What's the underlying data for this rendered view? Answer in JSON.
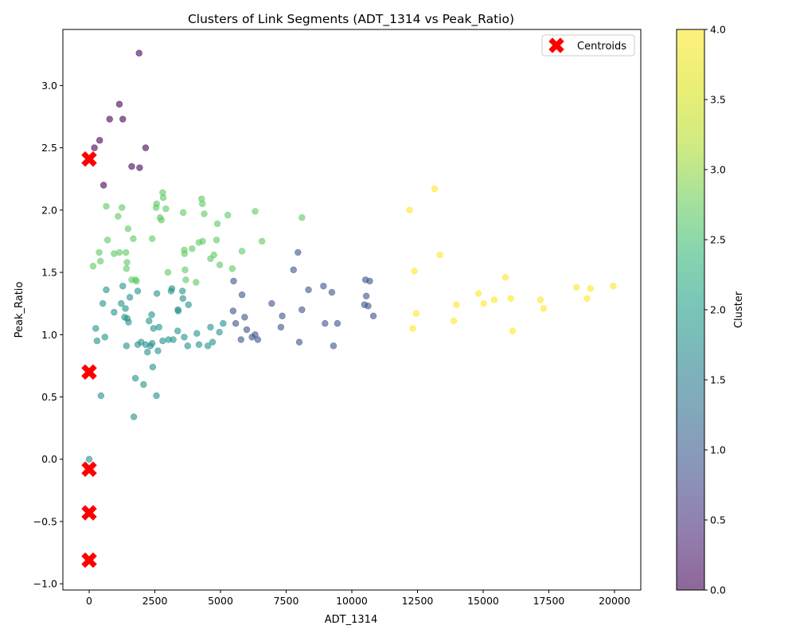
{
  "chart_data": {
    "type": "scatter",
    "title": "Clusters of Link Segments (ADT_1314 vs Peak_Ratio)",
    "xlabel": "ADT_1314",
    "ylabel": "Peak_Ratio",
    "xlim": [
      -1000,
      21000
    ],
    "ylim": [
      -1.05,
      3.45
    ],
    "x_ticks": [
      0,
      2500,
      5000,
      7500,
      10000,
      12500,
      15000,
      17500,
      20000
    ],
    "x_tick_labels": [
      "0",
      "2500",
      "5000",
      "7500",
      "10000",
      "12500",
      "15000",
      "17500",
      "20000"
    ],
    "y_ticks": [
      -1.0,
      -0.5,
      0.0,
      0.5,
      1.0,
      1.5,
      2.0,
      2.5,
      3.0
    ],
    "y_tick_labels": [
      "−1.0",
      "−0.5",
      "0.0",
      "0.5",
      "1.0",
      "1.5",
      "2.0",
      "2.5",
      "3.0"
    ],
    "grid": false,
    "colormap": "viridis",
    "marker_alpha": 0.6,
    "colorbar": {
      "label": "Cluster",
      "range": [
        0,
        4
      ],
      "ticks": [
        0.0,
        0.5,
        1.0,
        1.5,
        2.0,
        2.5,
        3.0,
        3.5,
        4.0
      ],
      "tick_labels": [
        "0.0",
        "0.5",
        "1.0",
        "1.5",
        "2.0",
        "2.5",
        "3.0",
        "3.5",
        "4.0"
      ]
    },
    "legend": {
      "placement": "top-right",
      "entries": [
        "Centroids"
      ]
    },
    "centroids": {
      "name": "Centroids",
      "color": "#ff0000",
      "marker": "X",
      "points": [
        [
          0,
          2.41
        ],
        [
          0,
          0.7
        ],
        [
          0,
          -0.08
        ],
        [
          0,
          -0.43
        ],
        [
          0,
          -0.81
        ]
      ]
    },
    "series": [
      {
        "cluster": 0,
        "color": "#440154",
        "points": [
          [
            200,
            2.5
          ],
          [
            400,
            2.56
          ],
          [
            550,
            2.2
          ],
          [
            780,
            2.73
          ],
          [
            1150,
            2.85
          ],
          [
            1280,
            2.73
          ],
          [
            1620,
            2.35
          ],
          [
            1920,
            2.34
          ],
          [
            1900,
            3.26
          ],
          [
            2150,
            2.5
          ]
        ]
      },
      {
        "cluster": 1,
        "color": "#3b528b",
        "points": [
          [
            5500,
            1.43
          ],
          [
            5480,
            1.19
          ],
          [
            5580,
            1.09
          ],
          [
            5780,
            0.96
          ],
          [
            5820,
            1.32
          ],
          [
            5920,
            1.14
          ],
          [
            6000,
            1.04
          ],
          [
            6200,
            0.98
          ],
          [
            6320,
            1.0
          ],
          [
            6420,
            0.96
          ],
          [
            6950,
            1.25
          ],
          [
            7300,
            1.06
          ],
          [
            7350,
            1.15
          ],
          [
            7780,
            1.52
          ],
          [
            7950,
            1.66
          ],
          [
            8000,
            0.94
          ],
          [
            8100,
            1.2
          ],
          [
            8350,
            1.36
          ],
          [
            8920,
            1.39
          ],
          [
            8980,
            1.09
          ],
          [
            9240,
            1.34
          ],
          [
            9300,
            0.91
          ],
          [
            9450,
            1.09
          ],
          [
            10480,
            1.24
          ],
          [
            10520,
            1.44
          ],
          [
            10550,
            1.31
          ],
          [
            10620,
            1.23
          ],
          [
            10680,
            1.43
          ],
          [
            10820,
            1.15
          ]
        ]
      },
      {
        "cluster": 2,
        "color": "#21918c",
        "points": [
          [
            0,
            0.0
          ],
          [
            250,
            1.05
          ],
          [
            300,
            0.95
          ],
          [
            450,
            0.51
          ],
          [
            520,
            1.25
          ],
          [
            600,
            0.98
          ],
          [
            650,
            1.36
          ],
          [
            950,
            1.18
          ],
          [
            1220,
            1.25
          ],
          [
            1280,
            1.39
          ],
          [
            1350,
            1.14
          ],
          [
            1380,
            1.21
          ],
          [
            1420,
            0.91
          ],
          [
            1450,
            1.13
          ],
          [
            1500,
            1.1
          ],
          [
            1550,
            1.3
          ],
          [
            1700,
            0.34
          ],
          [
            1760,
            0.65
          ],
          [
            1850,
            1.35
          ],
          [
            1850,
            0.92
          ],
          [
            1980,
            0.94
          ],
          [
            2070,
            0.6
          ],
          [
            2150,
            0.92
          ],
          [
            2220,
            0.86
          ],
          [
            2280,
            1.11
          ],
          [
            2330,
            0.91
          ],
          [
            2380,
            1.16
          ],
          [
            2400,
            0.93
          ],
          [
            2420,
            0.74
          ],
          [
            2450,
            1.05
          ],
          [
            2560,
            0.51
          ],
          [
            2580,
            1.33
          ],
          [
            2620,
            0.87
          ],
          [
            2660,
            1.06
          ],
          [
            2800,
            0.95
          ],
          [
            3020,
            0.96
          ],
          [
            3120,
            1.35
          ],
          [
            3150,
            1.37
          ],
          [
            3200,
            0.96
          ],
          [
            3370,
            1.03
          ],
          [
            3380,
            1.2
          ],
          [
            3390,
            1.19
          ],
          [
            3550,
            1.35
          ],
          [
            3570,
            1.29
          ],
          [
            3620,
            0.98
          ],
          [
            3750,
            0.91
          ],
          [
            3780,
            1.24
          ],
          [
            4100,
            1.01
          ],
          [
            4180,
            0.92
          ],
          [
            4520,
            0.91
          ],
          [
            4620,
            1.06
          ],
          [
            4700,
            0.94
          ],
          [
            4960,
            1.02
          ],
          [
            5100,
            1.09
          ]
        ]
      },
      {
        "cluster": 3,
        "color": "#5ec962",
        "points": [
          [
            150,
            1.55
          ],
          [
            380,
            1.66
          ],
          [
            430,
            1.59
          ],
          [
            650,
            2.03
          ],
          [
            700,
            1.76
          ],
          [
            950,
            1.65
          ],
          [
            1100,
            1.95
          ],
          [
            1150,
            1.66
          ],
          [
            1250,
            2.02
          ],
          [
            1400,
            1.66
          ],
          [
            1420,
            1.53
          ],
          [
            1440,
            1.58
          ],
          [
            1480,
            1.85
          ],
          [
            1620,
            1.44
          ],
          [
            1680,
            1.77
          ],
          [
            1760,
            1.44
          ],
          [
            1800,
            1.43
          ],
          [
            2400,
            1.77
          ],
          [
            2550,
            2.02
          ],
          [
            2570,
            2.05
          ],
          [
            2700,
            1.94
          ],
          [
            2750,
            1.92
          ],
          [
            2800,
            2.14
          ],
          [
            2820,
            2.1
          ],
          [
            2920,
            2.01
          ],
          [
            3000,
            1.5
          ],
          [
            3580,
            1.98
          ],
          [
            3620,
            1.68
          ],
          [
            3630,
            1.65
          ],
          [
            3650,
            1.52
          ],
          [
            3680,
            1.44
          ],
          [
            3920,
            1.69
          ],
          [
            4070,
            1.42
          ],
          [
            4180,
            1.74
          ],
          [
            4280,
            2.09
          ],
          [
            4310,
            2.05
          ],
          [
            4320,
            1.75
          ],
          [
            4380,
            1.97
          ],
          [
            4620,
            1.61
          ],
          [
            4750,
            1.64
          ],
          [
            4850,
            1.76
          ],
          [
            4880,
            1.89
          ],
          [
            4970,
            1.56
          ],
          [
            5280,
            1.96
          ],
          [
            5450,
            1.53
          ],
          [
            5820,
            1.67
          ],
          [
            6320,
            1.99
          ],
          [
            6580,
            1.75
          ],
          [
            8100,
            1.94
          ]
        ]
      },
      {
        "cluster": 4,
        "color": "#fde725",
        "points": [
          [
            12200,
            2.0
          ],
          [
            12320,
            1.05
          ],
          [
            12380,
            1.51
          ],
          [
            12450,
            1.17
          ],
          [
            13150,
            2.17
          ],
          [
            13350,
            1.64
          ],
          [
            13880,
            1.11
          ],
          [
            13980,
            1.24
          ],
          [
            14820,
            1.33
          ],
          [
            15020,
            1.25
          ],
          [
            15420,
            1.28
          ],
          [
            15850,
            1.46
          ],
          [
            16050,
            1.29
          ],
          [
            16120,
            1.03
          ],
          [
            17180,
            1.28
          ],
          [
            17300,
            1.21
          ],
          [
            18550,
            1.38
          ],
          [
            18950,
            1.29
          ],
          [
            19080,
            1.37
          ],
          [
            19950,
            1.39
          ]
        ]
      }
    ]
  }
}
